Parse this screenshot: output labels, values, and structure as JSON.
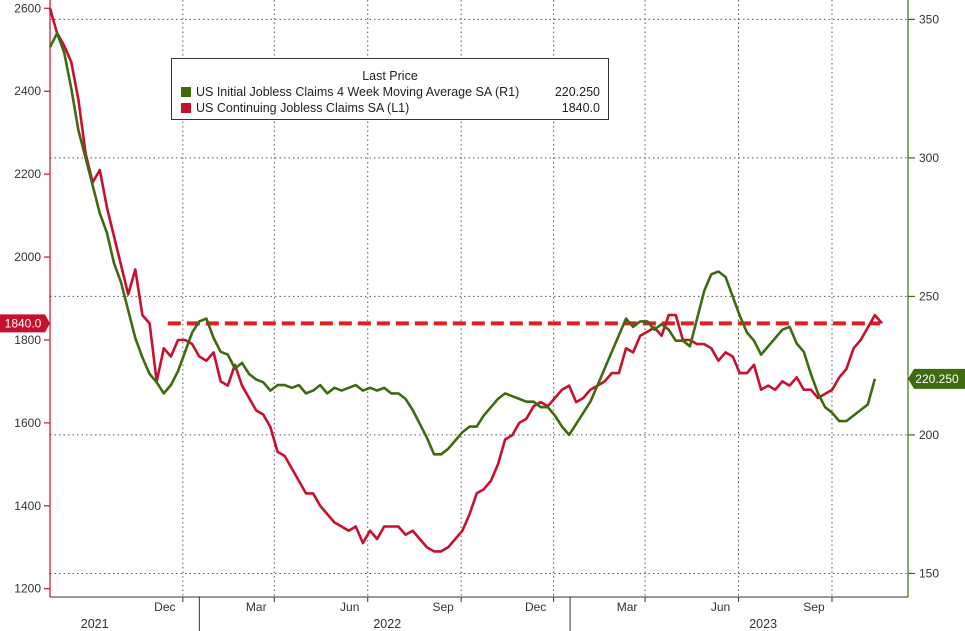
{
  "colors": {
    "continuing": "#c8102e",
    "initial": "#3f6b10",
    "reference": "#e01e24",
    "grid": "#555555",
    "right_axis": "#3f6b10"
  },
  "legend": {
    "title": "Last Price",
    "items": [
      {
        "label": "US Initial Jobless Claims 4 Week Moving Average SA  (R1)",
        "value": "220.250"
      },
      {
        "label": "US Continuing Jobless Claims SA  (L1)",
        "value": "1840.0"
      }
    ]
  },
  "badges": {
    "left": "1840.0",
    "right": "220.250"
  },
  "chart_data": {
    "type": "line",
    "x_start": "2021-08-07",
    "x_end": "2023-11-04",
    "x_ticks": [
      "Dec",
      "Mar",
      "Jun",
      "Sep",
      "Dec",
      "Mar",
      "Jun",
      "Sep"
    ],
    "x_years": [
      "2021",
      "2022",
      "2023"
    ],
    "y_left": {
      "range": [
        1180,
        2620
      ],
      "ticks": [
        1200,
        1400,
        1600,
        1800,
        2000,
        2200,
        2400,
        2600
      ]
    },
    "y_right": {
      "range": [
        141.5,
        357
      ],
      "ticks": [
        150,
        200,
        250,
        300,
        350
      ]
    },
    "reference_line": {
      "axis": "left",
      "value": 1840,
      "style": "dashed"
    },
    "series": [
      {
        "name": "US Continuing Jobless Claims SA  (L1)",
        "axis": "left",
        "color": "#c8102e",
        "last": 1840.0,
        "points": [
          [
            "2021-08-07",
            2600
          ],
          [
            "2021-08-14",
            2540
          ],
          [
            "2021-08-21",
            2510
          ],
          [
            "2021-08-28",
            2470
          ],
          [
            "2021-09-04",
            2380
          ],
          [
            "2021-09-11",
            2250
          ],
          [
            "2021-09-18",
            2180
          ],
          [
            "2021-09-25",
            2210
          ],
          [
            "2021-10-02",
            2120
          ],
          [
            "2021-10-09",
            2050
          ],
          [
            "2021-10-16",
            1980
          ],
          [
            "2021-10-23",
            1910
          ],
          [
            "2021-10-30",
            1970
          ],
          [
            "2021-11-06",
            1860
          ],
          [
            "2021-11-13",
            1840
          ],
          [
            "2021-11-20",
            1700
          ],
          [
            "2021-11-27",
            1780
          ],
          [
            "2021-12-04",
            1760
          ],
          [
            "2021-12-11",
            1800
          ],
          [
            "2021-12-18",
            1800
          ],
          [
            "2021-12-25",
            1790
          ],
          [
            "2022-01-01",
            1760
          ],
          [
            "2022-01-08",
            1750
          ],
          [
            "2022-01-15",
            1770
          ],
          [
            "2022-01-22",
            1700
          ],
          [
            "2022-01-29",
            1690
          ],
          [
            "2022-02-05",
            1740
          ],
          [
            "2022-02-12",
            1690
          ],
          [
            "2022-02-19",
            1660
          ],
          [
            "2022-02-26",
            1630
          ],
          [
            "2022-03-05",
            1620
          ],
          [
            "2022-03-12",
            1590
          ],
          [
            "2022-03-19",
            1530
          ],
          [
            "2022-03-26",
            1520
          ],
          [
            "2022-04-02",
            1490
          ],
          [
            "2022-04-09",
            1460
          ],
          [
            "2022-04-16",
            1430
          ],
          [
            "2022-04-23",
            1430
          ],
          [
            "2022-04-30",
            1400
          ],
          [
            "2022-05-07",
            1380
          ],
          [
            "2022-05-14",
            1360
          ],
          [
            "2022-05-21",
            1350
          ],
          [
            "2022-05-28",
            1340
          ],
          [
            "2022-06-04",
            1350
          ],
          [
            "2022-06-11",
            1310
          ],
          [
            "2022-06-18",
            1340
          ],
          [
            "2022-06-25",
            1320
          ],
          [
            "2022-07-02",
            1350
          ],
          [
            "2022-07-09",
            1350
          ],
          [
            "2022-07-16",
            1350
          ],
          [
            "2022-07-23",
            1330
          ],
          [
            "2022-07-30",
            1340
          ],
          [
            "2022-08-06",
            1320
          ],
          [
            "2022-08-13",
            1300
          ],
          [
            "2022-08-20",
            1290
          ],
          [
            "2022-08-27",
            1290
          ],
          [
            "2022-09-03",
            1300
          ],
          [
            "2022-09-10",
            1320
          ],
          [
            "2022-09-17",
            1340
          ],
          [
            "2022-09-24",
            1380
          ],
          [
            "2022-10-01",
            1430
          ],
          [
            "2022-10-08",
            1440
          ],
          [
            "2022-10-15",
            1460
          ],
          [
            "2022-10-22",
            1500
          ],
          [
            "2022-10-29",
            1560
          ],
          [
            "2022-11-05",
            1570
          ],
          [
            "2022-11-12",
            1600
          ],
          [
            "2022-11-19",
            1610
          ],
          [
            "2022-11-26",
            1640
          ],
          [
            "2022-12-03",
            1650
          ],
          [
            "2022-12-10",
            1640
          ],
          [
            "2022-12-17",
            1660
          ],
          [
            "2022-12-24",
            1680
          ],
          [
            "2022-12-31",
            1690
          ],
          [
            "2023-01-07",
            1650
          ],
          [
            "2023-01-14",
            1660
          ],
          [
            "2023-01-21",
            1680
          ],
          [
            "2023-01-28",
            1690
          ],
          [
            "2023-02-04",
            1700
          ],
          [
            "2023-02-11",
            1720
          ],
          [
            "2023-02-18",
            1720
          ],
          [
            "2023-02-25",
            1780
          ],
          [
            "2023-03-04",
            1770
          ],
          [
            "2023-03-11",
            1810
          ],
          [
            "2023-03-18",
            1820
          ],
          [
            "2023-03-25",
            1830
          ],
          [
            "2023-04-01",
            1810
          ],
          [
            "2023-04-08",
            1860
          ],
          [
            "2023-04-15",
            1860
          ],
          [
            "2023-04-22",
            1800
          ],
          [
            "2023-04-29",
            1800
          ],
          [
            "2023-05-06",
            1790
          ],
          [
            "2023-05-13",
            1790
          ],
          [
            "2023-05-20",
            1780
          ],
          [
            "2023-05-27",
            1750
          ],
          [
            "2023-06-03",
            1770
          ],
          [
            "2023-06-10",
            1760
          ],
          [
            "2023-06-17",
            1720
          ],
          [
            "2023-06-24",
            1720
          ],
          [
            "2023-07-01",
            1740
          ],
          [
            "2023-07-08",
            1680
          ],
          [
            "2023-07-15",
            1690
          ],
          [
            "2023-07-22",
            1680
          ],
          [
            "2023-07-29",
            1700
          ],
          [
            "2023-08-05",
            1690
          ],
          [
            "2023-08-12",
            1710
          ],
          [
            "2023-08-19",
            1680
          ],
          [
            "2023-08-26",
            1680
          ],
          [
            "2023-09-02",
            1660
          ],
          [
            "2023-09-09",
            1670
          ],
          [
            "2023-09-16",
            1680
          ],
          [
            "2023-09-23",
            1710
          ],
          [
            "2023-09-30",
            1730
          ],
          [
            "2023-10-07",
            1780
          ],
          [
            "2023-10-14",
            1800
          ],
          [
            "2023-10-21",
            1830
          ],
          [
            "2023-10-28",
            1860
          ],
          [
            "2023-11-04",
            1840
          ]
        ]
      },
      {
        "name": "US Initial Jobless Claims 4 Week Moving Average SA  (R1)",
        "axis": "right",
        "color": "#3f6b10",
        "last": 220.25,
        "points": [
          [
            "2021-08-07",
            340
          ],
          [
            "2021-08-14",
            345
          ],
          [
            "2021-08-21",
            338
          ],
          [
            "2021-08-28",
            325
          ],
          [
            "2021-09-04",
            310
          ],
          [
            "2021-09-11",
            300
          ],
          [
            "2021-09-18",
            290
          ],
          [
            "2021-09-25",
            280
          ],
          [
            "2021-10-02",
            273
          ],
          [
            "2021-10-09",
            262
          ],
          [
            "2021-10-16",
            255
          ],
          [
            "2021-10-23",
            245
          ],
          [
            "2021-10-30",
            235
          ],
          [
            "2021-11-06",
            228
          ],
          [
            "2021-11-13",
            222
          ],
          [
            "2021-11-20",
            219
          ],
          [
            "2021-11-27",
            215
          ],
          [
            "2021-12-04",
            218
          ],
          [
            "2021-12-11",
            223
          ],
          [
            "2021-12-18",
            230
          ],
          [
            "2021-12-25",
            237
          ],
          [
            "2022-01-01",
            241
          ],
          [
            "2022-01-08",
            242
          ],
          [
            "2022-01-15",
            235
          ],
          [
            "2022-01-22",
            230
          ],
          [
            "2022-01-29",
            229
          ],
          [
            "2022-02-05",
            224
          ],
          [
            "2022-02-12",
            226
          ],
          [
            "2022-02-19",
            222
          ],
          [
            "2022-02-26",
            220
          ],
          [
            "2022-03-05",
            219
          ],
          [
            "2022-03-12",
            216
          ],
          [
            "2022-03-19",
            218
          ],
          [
            "2022-03-26",
            218
          ],
          [
            "2022-04-02",
            217
          ],
          [
            "2022-04-09",
            218
          ],
          [
            "2022-04-16",
            215
          ],
          [
            "2022-04-23",
            216
          ],
          [
            "2022-04-30",
            218
          ],
          [
            "2022-05-07",
            215
          ],
          [
            "2022-05-14",
            217
          ],
          [
            "2022-05-21",
            216
          ],
          [
            "2022-05-28",
            217
          ],
          [
            "2022-06-04",
            218
          ],
          [
            "2022-06-11",
            216
          ],
          [
            "2022-06-18",
            217
          ],
          [
            "2022-06-25",
            216
          ],
          [
            "2022-07-02",
            217
          ],
          [
            "2022-07-09",
            215
          ],
          [
            "2022-07-16",
            215
          ],
          [
            "2022-07-23",
            213
          ],
          [
            "2022-07-30",
            209
          ],
          [
            "2022-08-06",
            204
          ],
          [
            "2022-08-13",
            199
          ],
          [
            "2022-08-20",
            193
          ],
          [
            "2022-08-27",
            193
          ],
          [
            "2022-09-03",
            195
          ],
          [
            "2022-09-10",
            198
          ],
          [
            "2022-09-17",
            201
          ],
          [
            "2022-09-24",
            203
          ],
          [
            "2022-10-01",
            203
          ],
          [
            "2022-10-08",
            207
          ],
          [
            "2022-10-15",
            210
          ],
          [
            "2022-10-22",
            213
          ],
          [
            "2022-10-29",
            215
          ],
          [
            "2022-11-05",
            214
          ],
          [
            "2022-11-12",
            213
          ],
          [
            "2022-11-19",
            212
          ],
          [
            "2022-11-26",
            212
          ],
          [
            "2022-12-03",
            210
          ],
          [
            "2022-12-10",
            210
          ],
          [
            "2022-12-17",
            207
          ],
          [
            "2022-12-24",
            203
          ],
          [
            "2022-12-31",
            200
          ],
          [
            "2023-01-07",
            204
          ],
          [
            "2023-01-14",
            208
          ],
          [
            "2023-01-21",
            212
          ],
          [
            "2023-01-28",
            218
          ],
          [
            "2023-02-04",
            224
          ],
          [
            "2023-02-11",
            230
          ],
          [
            "2023-02-18",
            236
          ],
          [
            "2023-02-25",
            242
          ],
          [
            "2023-03-04",
            239
          ],
          [
            "2023-03-11",
            241
          ],
          [
            "2023-03-18",
            241
          ],
          [
            "2023-03-25",
            238
          ],
          [
            "2023-04-01",
            240
          ],
          [
            "2023-04-08",
            238
          ],
          [
            "2023-04-15",
            234
          ],
          [
            "2023-04-22",
            234
          ],
          [
            "2023-04-29",
            232
          ],
          [
            "2023-05-06",
            242
          ],
          [
            "2023-05-13",
            252
          ],
          [
            "2023-05-20",
            258
          ],
          [
            "2023-05-27",
            259
          ],
          [
            "2023-06-03",
            257
          ],
          [
            "2023-06-10",
            250
          ],
          [
            "2023-06-17",
            243
          ],
          [
            "2023-06-24",
            237
          ],
          [
            "2023-07-01",
            234
          ],
          [
            "2023-07-08",
            229
          ],
          [
            "2023-07-15",
            232
          ],
          [
            "2023-07-22",
            235
          ],
          [
            "2023-07-29",
            238
          ],
          [
            "2023-08-05",
            239
          ],
          [
            "2023-08-12",
            233
          ],
          [
            "2023-08-19",
            230
          ],
          [
            "2023-08-26",
            222
          ],
          [
            "2023-09-02",
            215
          ],
          [
            "2023-09-09",
            210
          ],
          [
            "2023-09-16",
            208
          ],
          [
            "2023-09-23",
            205
          ],
          [
            "2023-09-30",
            205
          ],
          [
            "2023-10-07",
            207
          ],
          [
            "2023-10-14",
            209
          ],
          [
            "2023-10-21",
            211
          ],
          [
            "2023-10-28",
            220.25
          ]
        ]
      }
    ]
  }
}
